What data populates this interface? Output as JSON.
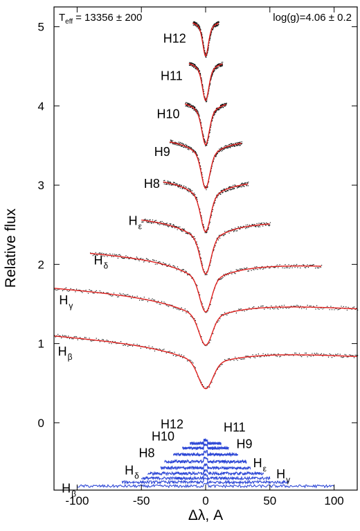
{
  "chart_data": {
    "type": "line",
    "xlabel": "Δλ, A",
    "ylabel": "Relative flux",
    "xlim": [
      -118,
      118
    ],
    "ylim": [
      -0.85,
      5.25
    ],
    "x_ticks": [
      -100,
      -50,
      0,
      50,
      100
    ],
    "y_ticks": [
      0,
      1,
      2,
      3,
      4,
      5
    ],
    "grid": false,
    "annotations": {
      "teff_symbol": "T",
      "teff_sub": "eff",
      "teff_value": "= 13356 ± 200",
      "logg": "log(g)=4.06 ± 0.2"
    },
    "colors": {
      "model": "#e0201e",
      "observed": "#111111",
      "residual": "#2f49d6"
    },
    "profiles": [
      {
        "label_main": "H",
        "label_sub": "β",
        "offset": 0.0,
        "half_width": 120,
        "depth": 0.57,
        "core_width": 5.5,
        "wing_width": 34,
        "slope": -0.0011,
        "label_pos": [
          -115,
          0.9
        ]
      },
      {
        "label_main": "H",
        "label_sub": "γ",
        "offset": 0.6,
        "half_width": 120,
        "depth": 0.62,
        "core_width": 5.0,
        "wing_width": 30,
        "slope": -0.0011,
        "label_pos": [
          -114,
          1.55
        ]
      },
      {
        "label_main": "H",
        "label_sub": "δ",
        "offset": 1.1,
        "half_width": 90,
        "depth": 0.7,
        "core_width": 4.5,
        "wing_width": 26,
        "slope": -0.0009,
        "label_pos": [
          -87,
          2.05
        ]
      },
      {
        "label_main": "H",
        "label_sub": "ε",
        "offset": 1.6,
        "half_width": 50,
        "depth": 0.72,
        "core_width": 4.0,
        "wing_width": 20,
        "slope": -0.0005,
        "label_pos": [
          -60,
          2.55
        ]
      },
      {
        "label_main": "H8",
        "label_sub": "",
        "offset": 2.1,
        "half_width": 33,
        "depth": 0.69,
        "core_width": 3.6,
        "wing_width": 15,
        "slope": -0.0004,
        "label_pos": [
          -48,
          3.02
        ]
      },
      {
        "label_main": "H9",
        "label_sub": "",
        "offset": 2.6,
        "half_width": 28,
        "depth": 0.64,
        "core_width": 3.2,
        "wing_width": 12,
        "slope": -0.0003,
        "label_pos": [
          -40,
          3.42
        ]
      },
      {
        "label_main": "H10",
        "label_sub": "",
        "offset": 3.1,
        "half_width": 16,
        "depth": 0.59,
        "core_width": 2.8,
        "wing_width": 9,
        "slope": -0.0002,
        "label_pos": [
          -38,
          3.9
        ]
      },
      {
        "label_main": "H11",
        "label_sub": "",
        "offset": 3.6,
        "half_width": 13,
        "depth": 0.53,
        "core_width": 2.4,
        "wing_width": 7,
        "slope": -0.0002,
        "label_pos": [
          -35,
          4.38
        ]
      },
      {
        "label_main": "H12",
        "label_sub": "",
        "offset": 4.1,
        "half_width": 10,
        "depth": 0.47,
        "core_width": 2.1,
        "wing_width": 5,
        "slope": -0.0002,
        "label_pos": [
          -33,
          4.85
        ]
      }
    ],
    "residuals": [
      {
        "label_main": "H",
        "label_sub": "β",
        "baseline": -0.8,
        "half_width": 100,
        "label_pos": [
          -112,
          -0.83
        ]
      },
      {
        "label_main": "H",
        "label_sub": "γ",
        "baseline": -0.75,
        "half_width": 65,
        "label_pos": [
          55,
          -0.65
        ]
      },
      {
        "label_main": "H",
        "label_sub": "δ",
        "baseline": -0.7,
        "half_width": 50,
        "label_pos": [
          -63,
          -0.6
        ]
      },
      {
        "label_main": "H",
        "label_sub": "ε",
        "baseline": -0.64,
        "half_width": 45,
        "label_pos": [
          37,
          -0.51
        ]
      },
      {
        "label_main": "H8",
        "label_sub": "",
        "baseline": -0.57,
        "half_width": 35,
        "label_pos": [
          -52,
          -0.38
        ]
      },
      {
        "label_main": "H9",
        "label_sub": "",
        "baseline": -0.49,
        "half_width": 32,
        "label_pos": [
          24,
          -0.27
        ]
      },
      {
        "label_main": "H10",
        "label_sub": "",
        "baseline": -0.4,
        "half_width": 25,
        "label_pos": [
          -42,
          -0.17
        ]
      },
      {
        "label_main": "H11",
        "label_sub": "",
        "baseline": -0.32,
        "half_width": 18,
        "label_pos": [
          14,
          -0.06
        ]
      },
      {
        "label_main": "H12",
        "label_sub": "",
        "baseline": -0.26,
        "half_width": 12,
        "label_pos": [
          -35,
          -0.02
        ]
      }
    ]
  }
}
